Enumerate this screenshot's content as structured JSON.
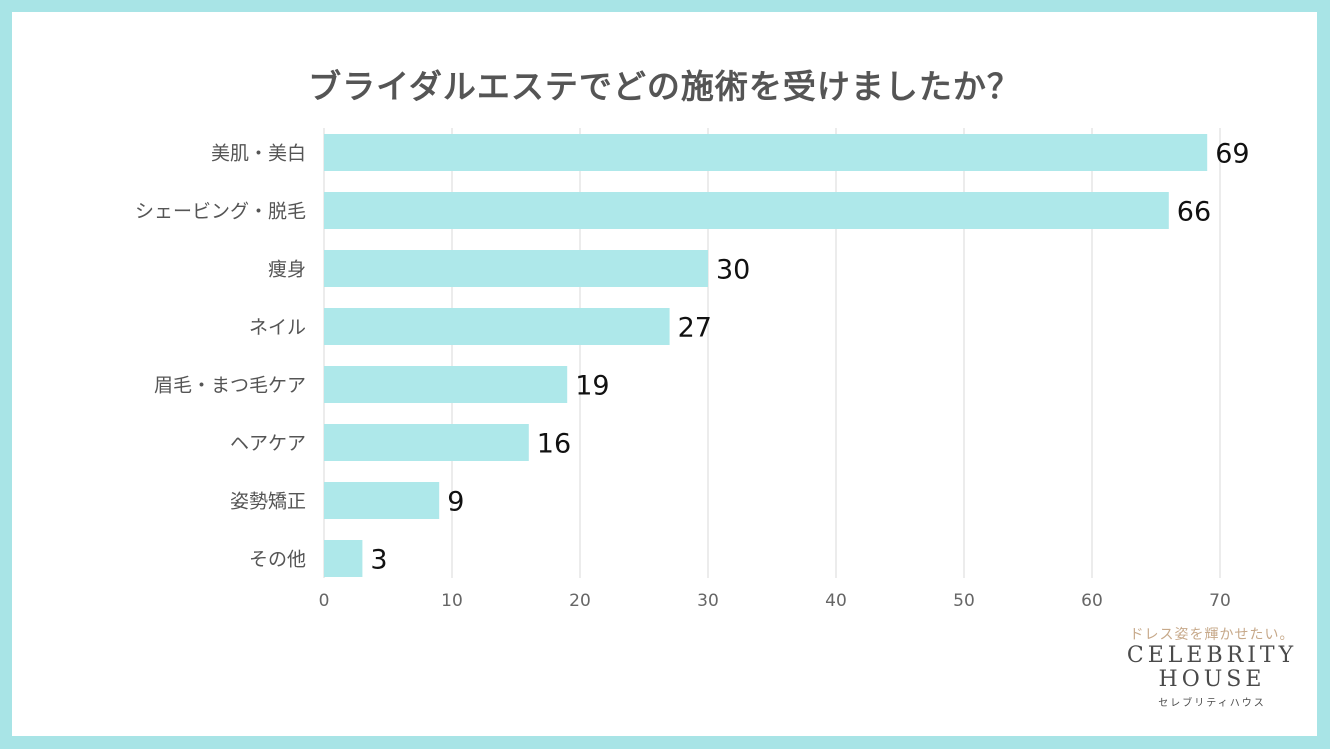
{
  "title": "ブライダルエステでどの施術を受けましたか？",
  "chart_data": {
    "type": "bar",
    "orientation": "horizontal",
    "title": "ブライダルエステでどの施術を受けましたか？",
    "categories": [
      "美肌・美白",
      "シェービング・脱毛",
      "痩身",
      "ネイル",
      "眉毛・まつ毛ケア",
      "ヘアケア",
      "姿勢矯正",
      "その他"
    ],
    "values": [
      69,
      66,
      30,
      27,
      19,
      16,
      9,
      3
    ],
    "xlim": [
      0,
      70
    ],
    "xticks": [
      0,
      10,
      20,
      30,
      40,
      50,
      60,
      70
    ],
    "xlabel": "",
    "ylabel": "",
    "grid": true,
    "bar_color": "#aee8ea"
  },
  "logo": {
    "tagline": "ドレス姿を輝かせたい。",
    "brand_line1": "CELEBRITY",
    "brand_line2": "HOUSE",
    "kana": "セレブリティハウス"
  }
}
